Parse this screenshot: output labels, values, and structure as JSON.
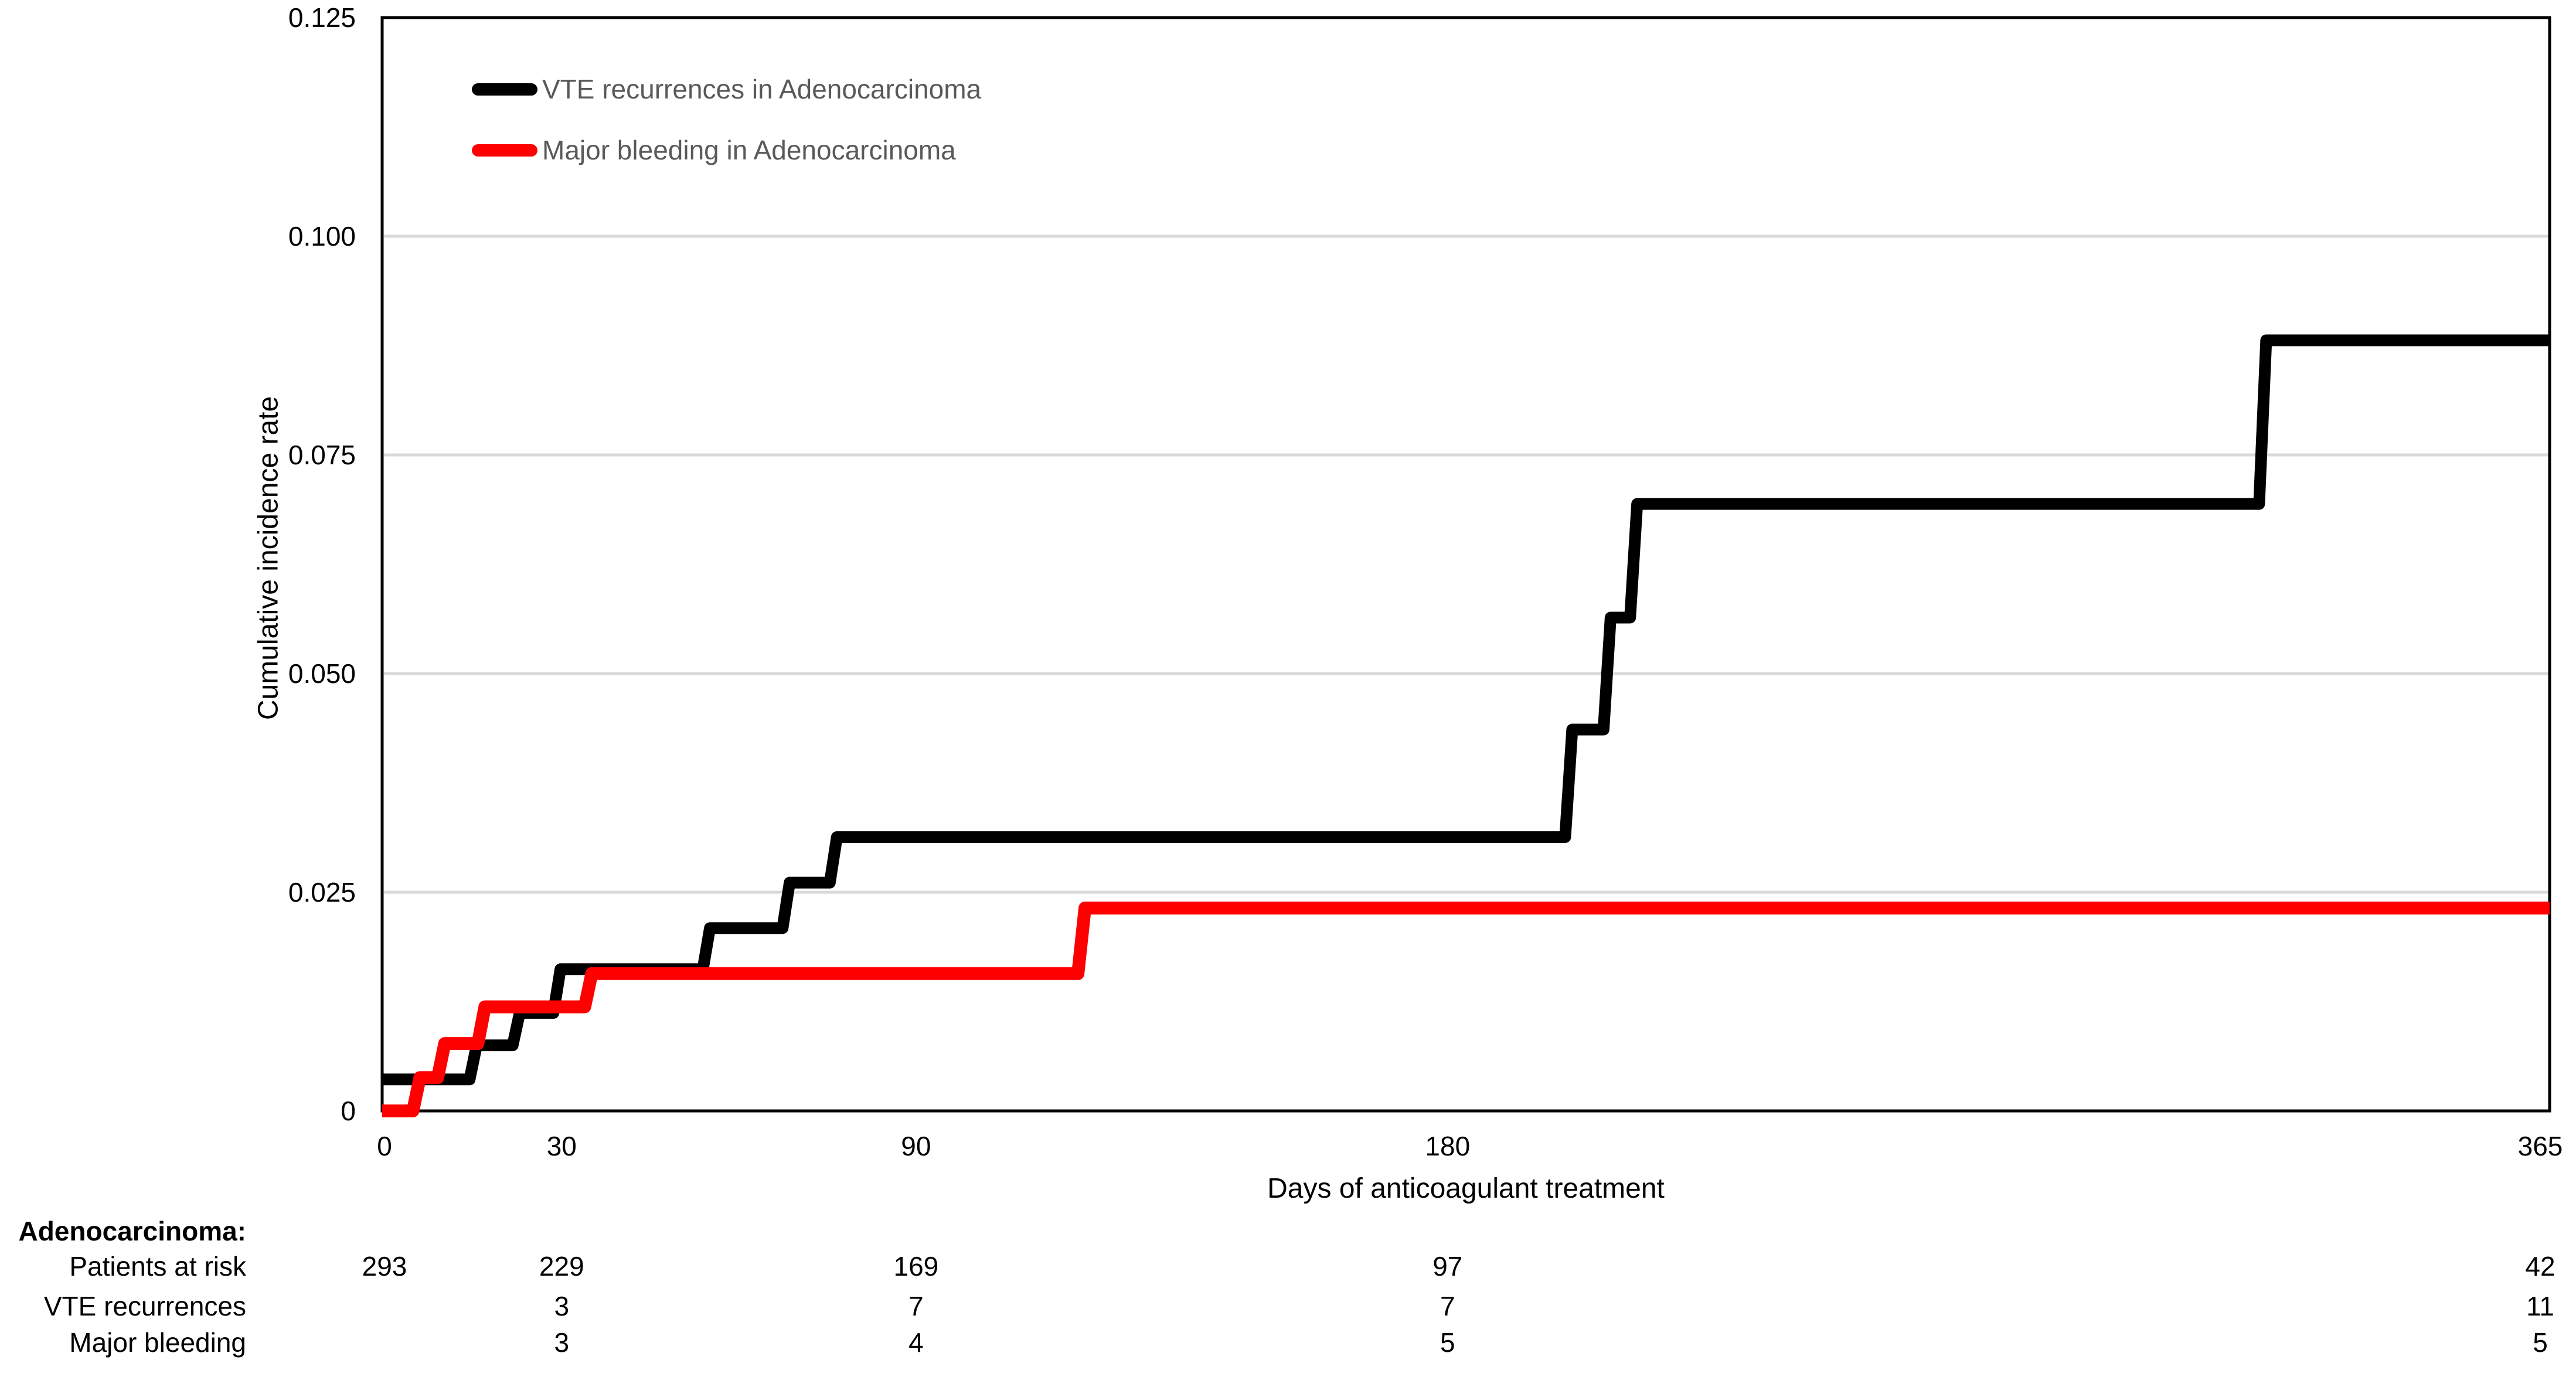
{
  "figure": {
    "background": "#ffffff",
    "text_color": "#000000",
    "legend_text_color": "#595959",
    "gridline_color": "#d9d9d9"
  },
  "legend": {
    "items": [
      {
        "label": "VTE recurrences in Adenocarcinoma",
        "color": "#000000",
        "swatch": "thick-line"
      },
      {
        "label": "Major bleeding in Adenocarcinoma",
        "color": "#ff0000",
        "swatch": "thick-line"
      }
    ]
  },
  "chart_data": {
    "type": "line",
    "subtype": "step-cumulative-incidence",
    "title": "",
    "xlabel": "Days of anticoagulant treatment",
    "ylabel": "Cumulative incidence rate",
    "xlim": [
      0,
      365
    ],
    "ylim": [
      0,
      0.125
    ],
    "grid": {
      "show": true,
      "color": "#d9d9d9",
      "y_values": [
        0.025,
        0.05,
        0.075,
        0.1
      ]
    },
    "plot_border": "full-box",
    "legend_position": "top-left-inside",
    "x_ticks": [
      {
        "value": 0,
        "label": "0"
      },
      {
        "value": 30,
        "label": "30"
      },
      {
        "value": 90,
        "label": "90"
      },
      {
        "value": 180,
        "label": "180"
      },
      {
        "value": 365,
        "label": "365"
      }
    ],
    "y_ticks": [
      {
        "value": 0,
        "label": "0"
      },
      {
        "value": 0.025,
        "label": "0.025"
      },
      {
        "value": 0.05,
        "label": "0.050"
      },
      {
        "value": 0.075,
        "label": "0.075"
      },
      {
        "value": 0.1,
        "label": "0.100"
      },
      {
        "value": 0.125,
        "label": "0.125"
      }
    ],
    "series": [
      {
        "name": "VTE recurrences in Adenocarcinoma",
        "color": "#000000",
        "stroke_width": 20,
        "start_value": 0.0036,
        "steps": [
          {
            "day": 15.0,
            "value": 0.0075
          },
          {
            "day": 22.3,
            "value": 0.0112
          },
          {
            "day": 29.2,
            "value": 0.0162
          },
          {
            "day": 54.5,
            "value": 0.0209
          },
          {
            "day": 68.0,
            "value": 0.0261
          },
          {
            "day": 76.0,
            "value": 0.0313
          },
          {
            "day": 200.5,
            "value": 0.0436
          },
          {
            "day": 207.0,
            "value": 0.0564
          },
          {
            "day": 211.5,
            "value": 0.0694
          },
          {
            "day": 318.0,
            "value": 0.0881
          }
        ],
        "end_day": 365,
        "end_value": 0.0881
      },
      {
        "name": "Major bleeding in Adenocarcinoma",
        "color": "#ff0000",
        "stroke_width": 22,
        "start_value": 0,
        "steps": [
          {
            "day": 5.4,
            "value": 0.0038
          },
          {
            "day": 9.6,
            "value": 0.0077
          },
          {
            "day": 16.4,
            "value": 0.0119
          },
          {
            "day": 34.5,
            "value": 0.0157
          },
          {
            "day": 118.0,
            "value": 0.0232
          }
        ],
        "end_day": 365,
        "end_value": 0.0232
      }
    ]
  },
  "risk_table": {
    "group_label": "Adenocarcinoma:",
    "column_days": [
      0,
      30,
      90,
      180,
      365
    ],
    "rows": [
      {
        "label": "Patients at risk",
        "values": [
          "293",
          "229",
          "169",
          "97",
          "42"
        ]
      },
      {
        "label": "VTE recurrences",
        "values": [
          "",
          "3",
          "7",
          "7",
          "11"
        ]
      },
      {
        "label": "Major bleeding",
        "values": [
          "",
          "3",
          "4",
          "5",
          "5"
        ]
      }
    ]
  }
}
